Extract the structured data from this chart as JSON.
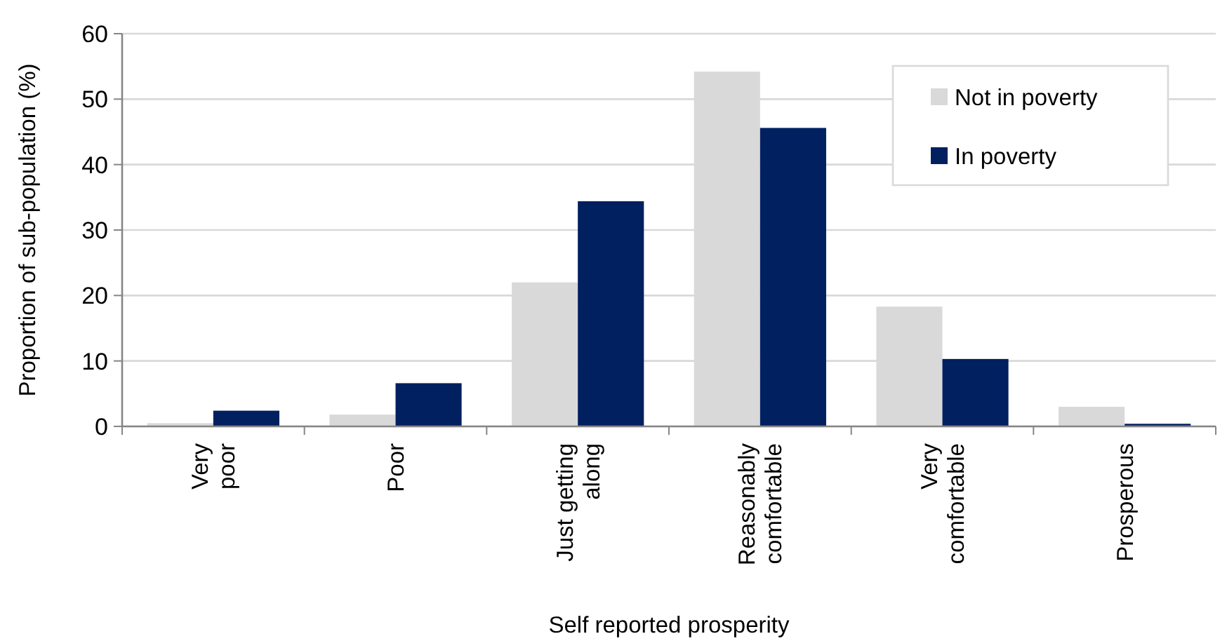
{
  "chart_data": {
    "type": "bar",
    "xlabel": "Self reported prosperity",
    "ylabel": "Proportion of sub-population (%)",
    "categories": [
      "Very\npoor",
      "Poor",
      "Just getting\nalong",
      "Reasonably\ncomfortable",
      "Very\ncomfortable",
      "Prosperous"
    ],
    "series": [
      {
        "name": "Not in poverty",
        "color": "#d9d9d9",
        "values": [
          0.5,
          1.8,
          22.0,
          54.2,
          18.3,
          3.0
        ]
      },
      {
        "name": "In poverty",
        "color": "#002060",
        "values": [
          2.4,
          6.6,
          34.4,
          45.6,
          10.3,
          0.4
        ]
      }
    ],
    "ylim": [
      0,
      60
    ],
    "yticks": [
      0,
      10,
      20,
      30,
      40,
      50,
      60
    ],
    "grid": "y",
    "legend": "top right"
  }
}
